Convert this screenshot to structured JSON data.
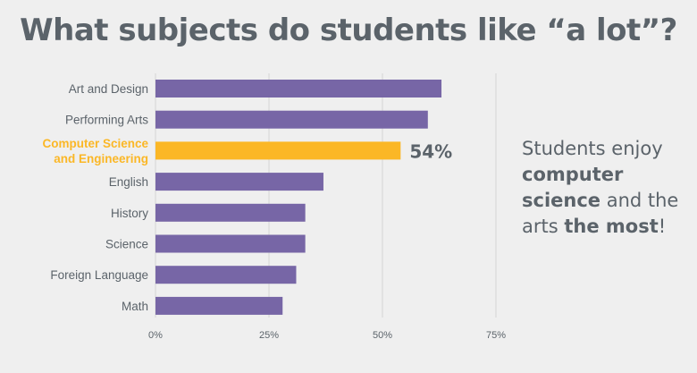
{
  "title": "What subjects do students like “a lot”?",
  "callout": [
    {
      "text": "Students enjoy ",
      "bold": false
    },
    {
      "text": "computer science",
      "bold": true
    },
    {
      "text": " and the arts ",
      "bold": false
    },
    {
      "text": "the most",
      "bold": true
    },
    {
      "text": "!",
      "bold": false
    }
  ],
  "colors": {
    "bar": "#7766a6",
    "highlight": "#fbb726",
    "text": "#5b636a",
    "grid": "#d6d6d6"
  },
  "chart_data": {
    "type": "bar",
    "orientation": "horizontal",
    "title": "What subjects do students like “a lot”?",
    "categories": [
      "Art and Design",
      "Performing Arts",
      "Computer Science and Engineering",
      "English",
      "History",
      "Science",
      "Foreign Language",
      "Math"
    ],
    "category_lines": [
      [
        "Art and Design"
      ],
      [
        "Performing Arts"
      ],
      [
        "Computer Science",
        "and Engineering"
      ],
      [
        "English"
      ],
      [
        "History"
      ],
      [
        "Science"
      ],
      [
        "Foreign Language"
      ],
      [
        "Math"
      ]
    ],
    "values": [
      63,
      60,
      54,
      37,
      33,
      33,
      31,
      28
    ],
    "highlight_index": 2,
    "data_labels": [
      "",
      "",
      "54%",
      "",
      "",
      "",
      "",
      ""
    ],
    "xlim": [
      0,
      75
    ],
    "xticks": [
      0,
      25,
      50,
      75
    ],
    "xtick_labels": [
      "0%",
      "25%",
      "50%",
      "75%"
    ],
    "xlabel": "",
    "ylabel": "",
    "grid": true,
    "legend": "none"
  }
}
